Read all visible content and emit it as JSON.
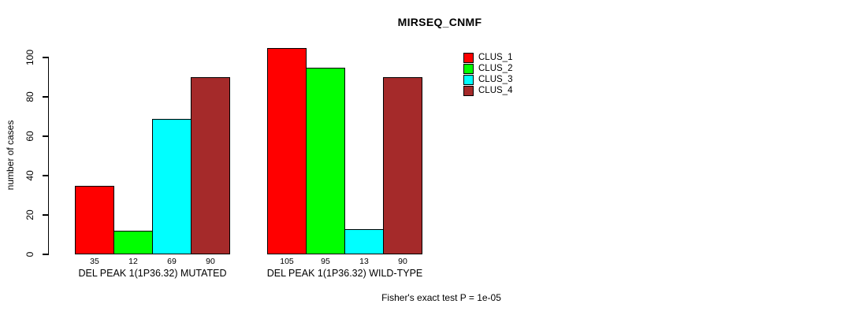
{
  "title": "MIRSEQ_CNMF",
  "footer": "Fisher's exact test P = 1e-05",
  "chart_data": {
    "type": "bar",
    "title": "MIRSEQ_CNMF",
    "ylabel": "number of cases",
    "xlabel": "",
    "ylim": [
      0,
      105
    ],
    "yticks": [
      0,
      20,
      40,
      60,
      80,
      100
    ],
    "grid": false,
    "legend_position": "top-right",
    "bar_value_labels": true,
    "categories": [
      "DEL PEAK 1(1P36.32) MUTATED",
      "DEL PEAK 1(1P36.32) WILD-TYPE"
    ],
    "series": [
      {
        "name": "CLUS_1",
        "color": "#ff0000",
        "values": [
          35,
          105
        ]
      },
      {
        "name": "CLUS_2",
        "color": "#00ff00",
        "values": [
          12,
          95
        ]
      },
      {
        "name": "CLUS_3",
        "color": "#00ffff",
        "values": [
          69,
          13
        ]
      },
      {
        "name": "CLUS_4",
        "color": "#a52a2a",
        "values": [
          90,
          90
        ]
      }
    ],
    "annotation": "Fisher's exact test P = 1e-05"
  }
}
